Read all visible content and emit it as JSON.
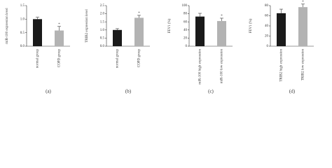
{
  "chart_data": [
    {
      "type": "bar",
      "ylabel": "miR-100 expression level",
      "label": "(a)",
      "categories": [
        "normal group",
        "COPD group"
      ],
      "values": [
        1.0,
        0.58
      ],
      "errors": [
        0.07,
        0.15
      ],
      "colors": [
        "#1a1a1a",
        "#b3b3b3"
      ],
      "annotations": [
        null,
        "*"
      ],
      "ylim": [
        0,
        1.5
      ],
      "yticks": [
        {
          "value": 0,
          "label": "0.0"
        },
        0.5,
        {
          "value": 1,
          "label": "1.0"
        },
        1.5
      ]
    },
    {
      "type": "bar",
      "ylabel": "TRIB2 expression level",
      "label": "(b)",
      "categories": [
        "normal group",
        "COPD group"
      ],
      "values": [
        1.0,
        1.75
      ],
      "errors": [
        0.08,
        0.15
      ],
      "colors": [
        "#1a1a1a",
        "#b3b3b3"
      ],
      "annotations": [
        null,
        "*"
      ],
      "ylim": [
        0,
        2.5
      ],
      "yticks": [
        {
          "value": 0,
          "label": "0.0"
        },
        0.5,
        {
          "value": 1,
          "label": "1.0"
        },
        1.5,
        {
          "value": 2,
          "label": "2.0"
        },
        2.5
      ]
    },
    {
      "type": "bar",
      "ylabel": "FEV1 (%)",
      "label": "(c)",
      "categories": [
        "miR-100 high expression",
        "miR-100 low expression"
      ],
      "values": [
        73,
        62
      ],
      "errors": [
        8,
        7
      ],
      "colors": [
        "#1a1a1a",
        "#b3b3b3"
      ],
      "annotations": [
        null,
        "*"
      ],
      "ylim": [
        0,
        100
      ],
      "yticks": [
        0,
        20,
        40,
        60,
        80,
        100
      ]
    },
    {
      "type": "bar",
      "ylabel": "FEV1 (%)",
      "label": "(d)",
      "categories": [
        "TRIB2 high expression",
        "TRIB2 low expression"
      ],
      "values": [
        65,
        77
      ],
      "errors": [
        8,
        6
      ],
      "colors": [
        "#1a1a1a",
        "#b3b3b3"
      ],
      "annotations": [
        null,
        "*"
      ],
      "ylim": [
        0,
        80
      ],
      "yticks": [
        0,
        20,
        40,
        60,
        80
      ]
    }
  ]
}
